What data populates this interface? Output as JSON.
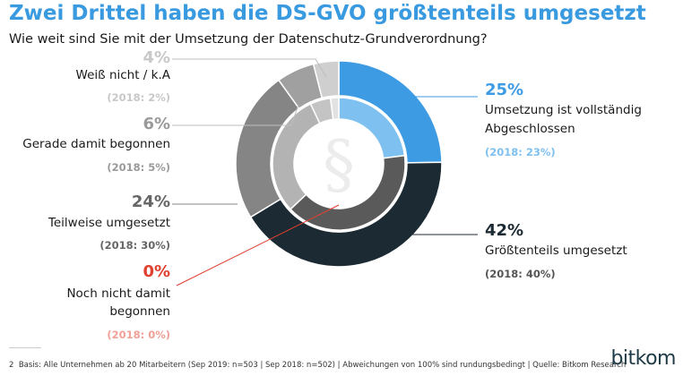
{
  "title": "Zwei Drittel haben die DS-GVO größtenteils umgesetzt",
  "subtitle": "Wie weit sind Sie mit der Umsetzung der Datenschutz-Grundverordnung?",
  "center_symbol": "§",
  "footer_text": "Basis: Alle Unternehmen ab 20 Mitarbeitern (Sep 2019: n=503 | Sep 2018: n=502) | Abweichungen von 100% sind rundungsbedingt | Quelle: Bitkom Research",
  "footnote_marker": "2",
  "logo_text": "bitkom",
  "colors": {
    "title_blue": "#3a9ae0",
    "vollstaendig_outer": "#3d9be3",
    "vollstaendig_inner": "#7ec0f0",
    "groesstenteils_outer": "#1c2a33",
    "groesstenteils_inner": "#5a5a5a",
    "teilweise_outer": "#858585",
    "teilweise_inner": "#b3b3b3",
    "gerade_outer": "#a0a0a0",
    "gerade_inner": "#c4c4c4",
    "weiss_outer": "#cfcfcf",
    "weiss_inner": "#e2e2e2",
    "red": "#e0402f"
  },
  "chart_data": {
    "type": "pie",
    "series": [
      {
        "name": "2019",
        "values": [
          25,
          42,
          24,
          0,
          6,
          4
        ]
      },
      {
        "name": "2018",
        "values": [
          23,
          40,
          30,
          0,
          5,
          2
        ]
      }
    ],
    "categories": [
      "Umsetzung ist vollständig Abgeschlossen",
      "Größtenteils umgesetzt",
      "Teilweise umgesetzt",
      "Noch nicht damit begonnen",
      "Gerade damit begonnen",
      "Weiß nicht / k.A"
    ],
    "labels": {
      "vollstaendig": {
        "pct": "25%",
        "line1": "Umsetzung ist vollständig",
        "line2": "Abgeschlossen",
        "prev": "(2018: 23%)"
      },
      "groesstenteils": {
        "pct": "42%",
        "line1": "Größtenteils umgesetzt",
        "prev": "(2018: 40%)"
      },
      "teilweise": {
        "pct": "24%",
        "line1": "Teilweise umgesetzt",
        "prev": "(2018: 30%)"
      },
      "nochnicht": {
        "pct": "0%",
        "line1": "Noch nicht damit",
        "line2": "begonnen",
        "prev": "(2018: 0%)"
      },
      "gerade": {
        "pct": "6%",
        "line1": "Gerade damit begonnen",
        "prev": "(2018: 5%)"
      },
      "weiss": {
        "pct": "4%",
        "line1": "Weiß nicht / k.A",
        "prev": "(2018: 2%)"
      }
    }
  }
}
